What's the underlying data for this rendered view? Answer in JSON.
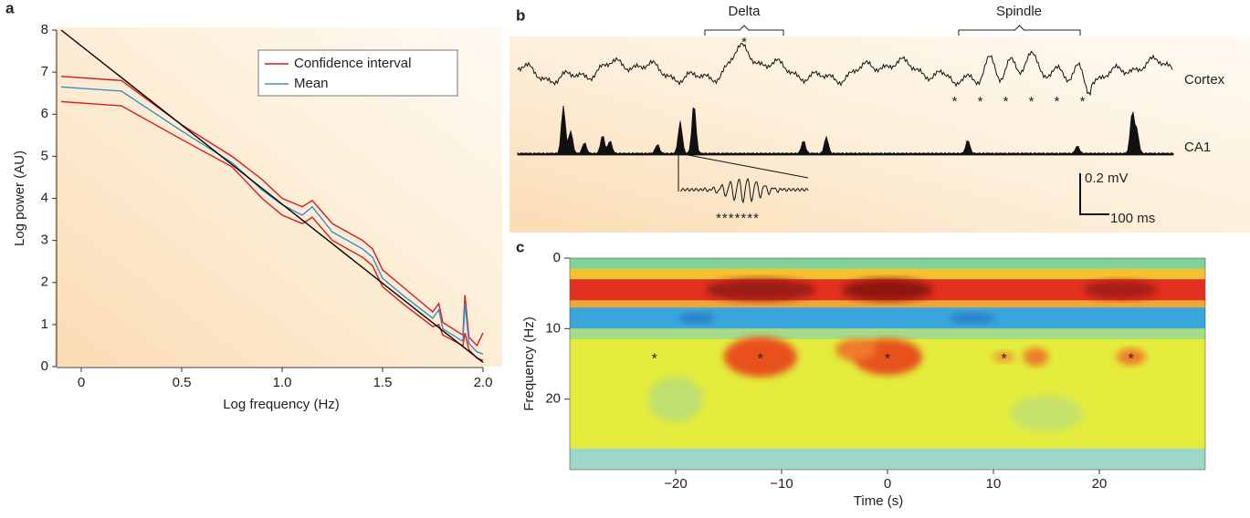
{
  "chart_data": [
    {
      "type": "line",
      "panel": "a",
      "xlabel": "Log frequency (Hz)",
      "ylabel": "Log power (AU)",
      "xlim": [
        -0.1,
        2.0
      ],
      "ylim": [
        0,
        8
      ],
      "xticks": [
        0,
        0.5,
        {
          "value": 1.0,
          "label": "1.0"
        },
        1.5,
        {
          "value": 2.0,
          "label": "2.0"
        }
      ],
      "yticks": [
        0,
        1,
        2,
        3,
        4,
        5,
        6,
        7,
        8
      ],
      "x": [
        -0.1,
        0.2,
        0.5,
        0.75,
        0.9,
        1.0,
        1.1,
        1.15,
        1.25,
        1.4,
        1.45,
        1.5,
        1.6,
        1.75,
        1.78,
        1.8,
        1.9,
        1.91,
        1.93,
        1.97,
        2.0
      ],
      "series": [
        {
          "name": "Confidence interval",
          "color": "#d7191c",
          "values": [
            6.9,
            6.8,
            5.75,
            5.0,
            4.45,
            4.0,
            3.8,
            3.95,
            3.4,
            3.0,
            2.8,
            2.3,
            1.9,
            1.3,
            1.5,
            1.05,
            0.75,
            1.7,
            0.7,
            0.5,
            0.8
          ],
          "lower": [
            6.3,
            6.2,
            5.4,
            4.75,
            4.0,
            3.6,
            3.4,
            3.55,
            3.0,
            2.6,
            2.4,
            1.9,
            1.5,
            0.95,
            1.0,
            0.75,
            0.5,
            0.8,
            0.4,
            0.2,
            0.15
          ]
        },
        {
          "name": "Mean",
          "color": "#3a8fc8",
          "values": [
            6.65,
            6.55,
            5.6,
            4.85,
            4.2,
            3.85,
            3.6,
            3.8,
            3.2,
            2.8,
            2.6,
            2.1,
            1.7,
            1.15,
            1.35,
            0.9,
            0.6,
            1.5,
            0.55,
            0.35,
            0.3
          ]
        },
        {
          "color": "#000000",
          "x": [
            -0.1,
            2.0
          ],
          "values": [
            8,
            0.1
          ]
        }
      ]
    },
    {
      "type": "trace",
      "panel": "b",
      "events": [
        "Delta",
        "Spindle"
      ],
      "traces": [
        "Cortex",
        "CA1"
      ],
      "scale": [
        "0.2 mV",
        "100 ms"
      ],
      "annotations": [
        "*",
        "* * * * * *",
        "*******"
      ]
    },
    {
      "type": "heatmap",
      "panel": "c",
      "xlabel": "Time (s)",
      "ylabel": "Frequency (Hz)",
      "xlim": [
        -30,
        30
      ],
      "ylim": [
        0,
        30
      ],
      "xticks": [
        {
          "value": -20,
          "label": "−20"
        },
        {
          "value": -10,
          "label": "−10"
        },
        0,
        10,
        20
      ],
      "yticks": [
        0,
        10,
        20
      ],
      "annotations": [
        {
          "x": -22,
          "y": 14,
          "text": "*"
        },
        {
          "x": -12,
          "y": 14,
          "text": "*"
        },
        {
          "x": 0,
          "y": 14,
          "text": "*"
        },
        {
          "x": 11,
          "y": 14,
          "text": "*"
        },
        {
          "x": 23,
          "y": 14,
          "text": "*"
        }
      ]
    }
  ]
}
